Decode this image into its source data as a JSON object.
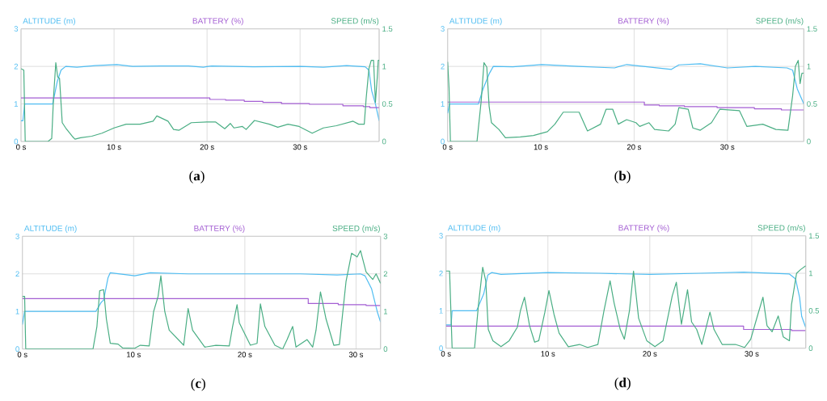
{
  "chart_data": [
    {
      "type": "line",
      "title": "(**a**)",
      "xlim": [
        0,
        38.5
      ],
      "xticks": [
        {
          "value": 0,
          "label": "0 s"
        },
        {
          "value": 10,
          "label": "10 s"
        },
        {
          "value": 20,
          "label": "20 s"
        },
        {
          "value": 30,
          "label": "30 s"
        }
      ],
      "ylim": [
        0,
        3
      ],
      "yticks": [
        0,
        1,
        2,
        3
      ],
      "y2lim": [
        0,
        1.5
      ],
      "y2ticks": [
        0,
        0.5,
        1,
        1.5
      ],
      "grid": true,
      "legend": "top",
      "series": [
        {
          "name": "ALTITUDE (m)",
          "color": "#4fbdf2",
          "axis": "y",
          "x": [
            0,
            0.2,
            0.4,
            3.4,
            3.9,
            4.3,
            4.8,
            6,
            8,
            10.3,
            12,
            15,
            18,
            19.6,
            20.5,
            25,
            30,
            32.5,
            35,
            37,
            37.4,
            37.7,
            38.1,
            38.5
          ],
          "values": [
            0.55,
            0.55,
            1.0,
            1.0,
            1.6,
            1.9,
            2.0,
            1.98,
            2.02,
            2.05,
            2.0,
            2.01,
            2.01,
            1.98,
            2.01,
            1.99,
            2.0,
            1.98,
            2.02,
            1.99,
            1.9,
            1.35,
            1.0,
            0.55
          ]
        },
        {
          "name": "BATTERY (%)",
          "color": "#a45fd3",
          "axis": "y",
          "type": "step",
          "x": [
            0,
            20,
            20.3,
            22,
            24,
            26,
            28,
            31,
            34.6,
            36.8,
            37.5,
            38.5
          ],
          "values": [
            1.16,
            1.16,
            1.12,
            1.1,
            1.07,
            1.04,
            1.01,
            0.99,
            0.95,
            0.93,
            0.9,
            0.9
          ]
        },
        {
          "name": "SPEED (m/s)",
          "color": "#4aae84",
          "axis": "y2",
          "x": [
            0,
            0.3,
            0.45,
            2.9,
            3.3,
            3.5,
            3.74,
            3.94,
            4.14,
            4.43,
            4.8,
            5.5,
            5.8,
            6.4,
            7.6,
            8.7,
            10,
            11.3,
            12.8,
            14.2,
            14.6,
            15.8,
            16.4,
            17,
            18.3,
            20,
            20.9,
            21.9,
            22.5,
            22.9,
            23.8,
            24.2,
            25.1,
            26.7,
            27.6,
            28.7,
            29.9,
            31.3,
            32.5,
            33.9,
            35.7,
            36.3,
            36.9,
            37.1,
            37.4,
            37.65,
            37.9,
            38.1,
            38.3,
            38.4,
            38.5
          ],
          "values": [
            0.97,
            0.95,
            0,
            0,
            0.04,
            0.6,
            1.05,
            0.86,
            0.84,
            0.25,
            0.18,
            0.07,
            0.03,
            0.05,
            0.07,
            0.11,
            0.18,
            0.23,
            0.23,
            0.27,
            0.34,
            0.27,
            0.16,
            0.15,
            0.25,
            0.26,
            0.26,
            0.17,
            0.24,
            0.18,
            0.2,
            0.16,
            0.28,
            0.23,
            0.19,
            0.23,
            0.2,
            0.11,
            0.18,
            0.21,
            0.27,
            0.23,
            0.23,
            0.57,
            0.97,
            1.08,
            1.08,
            0.52,
            0.86,
            1.08,
            1.08
          ]
        }
      ]
    },
    {
      "type": "line",
      "title": "(**b**)",
      "xlim": [
        0,
        38.2
      ],
      "xticks": [
        {
          "value": 0,
          "label": "0 s"
        },
        {
          "value": 10,
          "label": "10 s"
        },
        {
          "value": 20,
          "label": "20 s"
        },
        {
          "value": 30,
          "label": "30 s"
        }
      ],
      "ylim": [
        0,
        3
      ],
      "yticks": [
        0,
        1,
        2,
        3
      ],
      "y2lim": [
        0,
        1.5
      ],
      "y2ticks": [
        0,
        0.5,
        1,
        1.5
      ],
      "grid": true,
      "legend": "top",
      "series": [
        {
          "name": "ALTITUDE (m)",
          "color": "#4fbdf2",
          "axis": "y",
          "x": [
            0,
            0.2,
            3.3,
            3.8,
            4.45,
            4.9,
            7,
            10.1,
            14,
            17.9,
            19.2,
            21,
            24,
            24.8,
            27.1,
            30,
            33,
            36.4,
            37,
            37.5,
            38.2
          ],
          "values": [
            0.75,
            1.0,
            1.0,
            1.4,
            1.8,
            2.0,
            1.99,
            2.05,
            2.0,
            1.96,
            2.05,
            2.0,
            1.92,
            2.04,
            2.07,
            1.96,
            2.0,
            1.96,
            1.9,
            1.4,
            1.0
          ]
        },
        {
          "name": "BATTERY (%)",
          "color": "#a45fd3",
          "axis": "y",
          "type": "step",
          "x": [
            0,
            21.1,
            22.7,
            25.4,
            28.9,
            32.9,
            35.8,
            38.2
          ],
          "values": [
            1.05,
            0.97,
            0.95,
            0.93,
            0.9,
            0.87,
            0.84,
            0.84
          ]
        },
        {
          "name": "SPEED (m/s)",
          "color": "#4aae84",
          "axis": "y2",
          "x": [
            0,
            0.15,
            0.3,
            3.15,
            3.6,
            3.9,
            4.2,
            4.45,
            4.7,
            5.5,
            6.2,
            7.8,
            9.2,
            10.7,
            11.5,
            12.4,
            13.3,
            14.1,
            15,
            16.4,
            17,
            17.7,
            18.3,
            19.2,
            20.2,
            20.6,
            21.6,
            22.2,
            23.7,
            24.4,
            24.8,
            25.8,
            26.3,
            27.1,
            28.3,
            29.2,
            31.3,
            32.1,
            33.8,
            35.2,
            36.5,
            37,
            37.3,
            37.6,
            37.8,
            38,
            38.2
          ],
          "values": [
            1.06,
            0.72,
            0,
            0,
            0.54,
            1.05,
            0.99,
            0.47,
            0.25,
            0.16,
            0.05,
            0.06,
            0.08,
            0.13,
            0.23,
            0.39,
            0.39,
            0.39,
            0.14,
            0.23,
            0.43,
            0.43,
            0.23,
            0.29,
            0.25,
            0.2,
            0.25,
            0.16,
            0.14,
            0.23,
            0.45,
            0.43,
            0.18,
            0.15,
            0.25,
            0.43,
            0.41,
            0.2,
            0.23,
            0.16,
            0.15,
            0.61,
            1.0,
            1.08,
            0.77,
            0.91,
            0.91
          ]
        }
      ]
    },
    {
      "type": "line",
      "title": "(**c**)",
      "xlim": [
        0,
        32.2
      ],
      "xticks": [
        {
          "value": 0,
          "label": "0 s"
        },
        {
          "value": 10,
          "label": "10 s"
        },
        {
          "value": 20,
          "label": "20 s"
        },
        {
          "value": 30,
          "label": "30 s"
        }
      ],
      "ylim": [
        0,
        3
      ],
      "yticks": [
        0,
        1,
        2,
        3
      ],
      "y2lim": [
        0,
        3
      ],
      "y2ticks": [
        0,
        1,
        2,
        3
      ],
      "grid": true,
      "legend": "top",
      "series": [
        {
          "name": "ALTITUDE (m)",
          "color": "#4fbdf2",
          "axis": "y",
          "x": [
            0,
            0.2,
            6.6,
            7.1,
            7.3,
            7.7,
            7.9,
            10.1,
            11.5,
            14.9,
            20,
            25,
            28.3,
            30.4,
            30.8,
            31.4,
            31.9,
            32.2
          ],
          "values": [
            0.65,
            1.0,
            1.0,
            1.25,
            1.3,
            1.9,
            2.03,
            1.95,
            2.03,
            2.0,
            2.0,
            2.0,
            1.97,
            2.0,
            1.95,
            1.6,
            1.0,
            0.72
          ]
        },
        {
          "name": "BATTERY (%)",
          "color": "#a45fd3",
          "axis": "y",
          "type": "step",
          "x": [
            0,
            25.7,
            28.4,
            30.9,
            32.2
          ],
          "values": [
            1.34,
            1.21,
            1.18,
            1.16,
            1.16
          ]
        },
        {
          "name": "SPEED (m/s)",
          "color": "#4aae84",
          "axis": "y2",
          "x": [
            0,
            0.2,
            0.3,
            6.35,
            6.7,
            6.95,
            7.3,
            7.55,
            7.9,
            8.6,
            9.0,
            10.1,
            10.6,
            11.4,
            11.8,
            12.2,
            12.45,
            12.8,
            13.2,
            14.5,
            14.9,
            15.3,
            16.4,
            17.4,
            18.6,
            18.9,
            19.3,
            19.5,
            20.5,
            21.1,
            21.4,
            21.8,
            22.7,
            23.4,
            23.8,
            24.3,
            24.6,
            25.6,
            26.1,
            26.4,
            26.8,
            27.3,
            28,
            28.5,
            29.1,
            29.6,
            30.1,
            30.4,
            30.9,
            31.5,
            31.8,
            32.2
          ],
          "values": [
            1.4,
            1.4,
            0,
            0,
            0.6,
            1.55,
            1.58,
            0.8,
            0.15,
            0.13,
            0.03,
            0.02,
            0.1,
            0.08,
            1.0,
            1.4,
            1.95,
            1.0,
            0.5,
            0.1,
            1.08,
            0.5,
            0.05,
            0.1,
            0.08,
            0.6,
            1.18,
            0.7,
            0.1,
            0.15,
            1.2,
            0.6,
            0.1,
            0,
            0.25,
            0.6,
            0.05,
            0.25,
            0.05,
            0.5,
            1.52,
            0.8,
            0.1,
            0.12,
            1.8,
            2.55,
            2.45,
            2.62,
            2.05,
            1.85,
            2.0,
            1.75
          ]
        }
      ]
    },
    {
      "type": "line",
      "title": "(**d**)",
      "xlim": [
        0,
        35.3
      ],
      "xticks": [
        {
          "value": 0,
          "label": "0 s"
        },
        {
          "value": 10,
          "label": "10 s"
        },
        {
          "value": 20,
          "label": "20 s"
        },
        {
          "value": 30,
          "label": "30 s"
        }
      ],
      "ylim": [
        0,
        3
      ],
      "yticks": [
        0,
        1,
        2,
        3
      ],
      "y2lim": [
        0,
        1.5
      ],
      "y2ticks": [
        0,
        0.5,
        1,
        1.5
      ],
      "grid": true,
      "legend": "top",
      "series": [
        {
          "name": "ALTITUDE (m)",
          "color": "#4fbdf2",
          "axis": "y",
          "x": [
            0,
            0.5,
            0.6,
            3.0,
            3.7,
            4.1,
            4.5,
            5.4,
            10,
            15,
            20,
            25,
            29.2,
            33.7,
            34.3,
            34.7,
            34.9,
            35.3
          ],
          "values": [
            0.62,
            0.62,
            1.0,
            1.0,
            1.45,
            1.95,
            2.02,
            1.97,
            2.02,
            2.0,
            1.97,
            2.0,
            2.03,
            1.98,
            1.85,
            1.35,
            0.85,
            0.55
          ]
        },
        {
          "name": "BATTERY (%)",
          "color": "#a45fd3",
          "axis": "y",
          "type": "step",
          "x": [
            0,
            29.2,
            33.9,
            35.3
          ],
          "values": [
            0.59,
            0.5,
            0.47,
            0.47
          ]
        },
        {
          "name": "SPEED (m/s)",
          "color": "#4aae84",
          "axis": "y2",
          "x": [
            0,
            0.35,
            0.6,
            2.8,
            3.2,
            3.6,
            3.9,
            4.15,
            4.6,
            5.4,
            6.2,
            7.0,
            7.3,
            7.7,
            8.2,
            8.7,
            9.1,
            9.7,
            10.1,
            10.6,
            11.1,
            12.0,
            13.1,
            13.9,
            14.9,
            15.5,
            16.1,
            16.5,
            17.1,
            17.5,
            18.0,
            18.4,
            18.9,
            19.7,
            20.5,
            21.3,
            22.2,
            22.6,
            23.1,
            23.7,
            24.1,
            24.6,
            25.1,
            25.9,
            26.3,
            27.1,
            28.4,
            29.3,
            29.9,
            30.6,
            31.1,
            31.5,
            32.0,
            32.6,
            33.1,
            33.7,
            33.9,
            34.4,
            34.8,
            35.3
          ],
          "values": [
            1.03,
            1.03,
            0,
            0,
            0.6,
            1.08,
            0.9,
            0.25,
            0.1,
            0.02,
            0.1,
            0.28,
            0.5,
            0.68,
            0.3,
            0.08,
            0.1,
            0.48,
            0.77,
            0.45,
            0.2,
            0.02,
            0.05,
            0.01,
            0.05,
            0.5,
            0.9,
            0.6,
            0.25,
            0.12,
            0.5,
            1.03,
            0.4,
            0.1,
            0.02,
            0.1,
            0.7,
            0.88,
            0.32,
            0.78,
            0.35,
            0.25,
            0.05,
            0.48,
            0.25,
            0.05,
            0.05,
            0.01,
            0.12,
            0.45,
            0.68,
            0.3,
            0.22,
            0.43,
            0.15,
            0.1,
            0.58,
            1.0,
            1.05,
            1.1
          ]
        }
      ]
    }
  ]
}
